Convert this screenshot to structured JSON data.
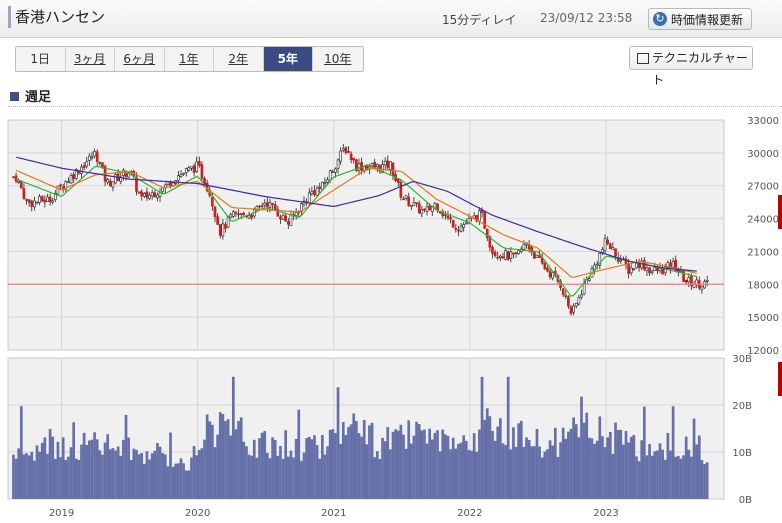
{
  "header": {
    "title": "香港ハンセン",
    "delay": "15分ディレイ",
    "timestamp": "23/09/12 23:58",
    "refresh_label": "時価情報更新"
  },
  "tabs": [
    {
      "label": "1日",
      "active": false
    },
    {
      "label": "3ヶ月",
      "active": false
    },
    {
      "label": "6ヶ月",
      "active": false
    },
    {
      "label": "1年",
      "active": false
    },
    {
      "label": "2年",
      "active": false
    },
    {
      "label": "5年",
      "active": true
    },
    {
      "label": "10年",
      "active": false
    }
  ],
  "tech_button": {
    "label": "テクニカルチャート"
  },
  "period_label": "週足",
  "colors": {
    "candle_up": "#ffffff",
    "candle_down": "#cc1f1f",
    "ma_short": "#33b233",
    "ma_mid": "#e67817",
    "ma_long": "#3b2ca6",
    "volume": "#6670a8",
    "ref_line": "#f08080",
    "panel_bg": "#f0f0f0"
  },
  "chart_data": [
    {
      "type": "line",
      "subtype": "candlestick weekly with moving averages",
      "x_ticks": [
        "2019",
        "2020",
        "2021",
        "2022",
        "2023"
      ],
      "y_ticks": [
        "33000",
        "30000",
        "27000",
        "24000",
        "21000",
        "18000",
        "15000",
        "12000"
      ],
      "ylim": [
        12000,
        33000
      ],
      "reference_line": 18000,
      "x_start": "2018-09",
      "x_end": "2023-09",
      "grid": true,
      "close_path": [
        [
          "2018-09",
          27800
        ],
        [
          "2018-10",
          25400
        ],
        [
          "2018-12",
          25800
        ],
        [
          "2019-01",
          27000
        ],
        [
          "2019-03",
          29000
        ],
        [
          "2019-04",
          30000
        ],
        [
          "2019-05",
          27200
        ],
        [
          "2019-07",
          28400
        ],
        [
          "2019-08",
          25800
        ],
        [
          "2019-10",
          26800
        ],
        [
          "2019-11",
          27800
        ],
        [
          "2020-01",
          28800
        ],
        [
          "2020-02",
          26600
        ],
        [
          "2020-03",
          22800
        ],
        [
          "2020-04",
          24200
        ],
        [
          "2020-06",
          24500
        ],
        [
          "2020-07",
          25600
        ],
        [
          "2020-09",
          23600
        ],
        [
          "2020-11",
          26400
        ],
        [
          "2020-12",
          26900
        ],
        [
          "2021-02",
          30500
        ],
        [
          "2021-03",
          28800
        ],
        [
          "2021-05",
          28700
        ],
        [
          "2021-06",
          28900
        ],
        [
          "2021-07",
          26000
        ],
        [
          "2021-09",
          24500
        ],
        [
          "2021-10",
          25400
        ],
        [
          "2021-11",
          24000
        ],
        [
          "2021-12",
          23200
        ],
        [
          "2022-02",
          24400
        ],
        [
          "2022-03",
          21000
        ],
        [
          "2022-05",
          20400
        ],
        [
          "2022-06",
          21800
        ],
        [
          "2022-07",
          20200
        ],
        [
          "2022-09",
          18000
        ],
        [
          "2022-10",
          15200
        ],
        [
          "2022-11",
          17800
        ],
        [
          "2022-12",
          19700
        ],
        [
          "2023-01",
          21900
        ],
        [
          "2023-03",
          19300
        ],
        [
          "2023-04",
          20000
        ],
        [
          "2023-05",
          19200
        ],
        [
          "2023-06",
          19300
        ],
        [
          "2023-07",
          19800
        ],
        [
          "2023-08",
          18300
        ],
        [
          "2023-09",
          18100
        ]
      ],
      "moving_averages": [
        {
          "points": [
            [
              "2018-09",
              27600
            ],
            [
              "2019-01",
              26000
            ],
            [
              "2019-04",
              28800
            ],
            [
              "2019-07",
              28100
            ],
            [
              "2019-10",
              26200
            ],
            [
              "2020-01",
              27900
            ],
            [
              "2020-04",
              23700
            ],
            [
              "2020-07",
              25000
            ],
            [
              "2020-10",
              24100
            ],
            [
              "2021-01",
              27800
            ],
            [
              "2021-04",
              28900
            ],
            [
              "2021-07",
              27500
            ],
            [
              "2021-10",
              24800
            ],
            [
              "2022-01",
              23600
            ],
            [
              "2022-04",
              21300
            ],
            [
              "2022-07",
              21000
            ],
            [
              "2022-10",
              16800
            ],
            [
              "2023-01",
              20600
            ],
            [
              "2023-04",
              19900
            ],
            [
              "2023-07",
              19200
            ],
            [
              "2023-09",
              18700
            ]
          ]
        },
        {
          "points": [
            [
              "2018-09",
              28400
            ],
            [
              "2019-01",
              26600
            ],
            [
              "2019-04",
              28000
            ],
            [
              "2019-07",
              28300
            ],
            [
              "2019-10",
              26800
            ],
            [
              "2020-01",
              27400
            ],
            [
              "2020-04",
              25000
            ],
            [
              "2020-07",
              24800
            ],
            [
              "2020-10",
              24600
            ],
            [
              "2021-01",
              26600
            ],
            [
              "2021-04",
              28600
            ],
            [
              "2021-07",
              28300
            ],
            [
              "2021-10",
              25800
            ],
            [
              "2022-01",
              24200
            ],
            [
              "2022-04",
              22500
            ],
            [
              "2022-07",
              21300
            ],
            [
              "2022-10",
              18600
            ],
            [
              "2023-01",
              19400
            ],
            [
              "2023-04",
              20100
            ],
            [
              "2023-07",
              19500
            ],
            [
              "2023-09",
              19000
            ]
          ]
        },
        {
          "points": [
            [
              "2018-09",
              29600
            ],
            [
              "2019-01",
              28600
            ],
            [
              "2019-07",
              27600
            ],
            [
              "2020-01",
              27200
            ],
            [
              "2020-07",
              26000
            ],
            [
              "2021-01",
              25100
            ],
            [
              "2021-05",
              26100
            ],
            [
              "2021-08",
              27400
            ],
            [
              "2021-11",
              26500
            ],
            [
              "2022-03",
              24300
            ],
            [
              "2022-07",
              22800
            ],
            [
              "2022-11",
              21400
            ],
            [
              "2023-03",
              20100
            ],
            [
              "2023-06",
              19500
            ],
            [
              "2023-09",
              19200
            ]
          ]
        }
      ]
    },
    {
      "type": "bar",
      "subtype": "weekly volume",
      "y_ticks": [
        "30B",
        "20B",
        "10B",
        "0B"
      ],
      "ylim": [
        0,
        30
      ],
      "x_ticks": [
        "2019",
        "2020",
        "2021",
        "2022",
        "2023"
      ],
      "volume_profile": [
        [
          "2018-09",
          10
        ],
        [
          "2018-12",
          11
        ],
        [
          "2019-04",
          12
        ],
        [
          "2019-09",
          10
        ],
        [
          "2019-12",
          8
        ],
        [
          "2020-03",
          17
        ],
        [
          "2020-06",
          12
        ],
        [
          "2020-09",
          11
        ],
        [
          "2020-12",
          12
        ],
        [
          "2021-02",
          17
        ],
        [
          "2021-05",
          12
        ],
        [
          "2021-08",
          14
        ],
        [
          "2021-11",
          11
        ],
        [
          "2022-01",
          11
        ],
        [
          "2022-03",
          18
        ],
        [
          "2022-06",
          12
        ],
        [
          "2022-09",
          12
        ],
        [
          "2022-10",
          15
        ],
        [
          "2022-11",
          18
        ],
        [
          "2023-01",
          14
        ],
        [
          "2023-04",
          11
        ],
        [
          "2023-07",
          12
        ],
        [
          "2023-09",
          10
        ]
      ]
    }
  ]
}
